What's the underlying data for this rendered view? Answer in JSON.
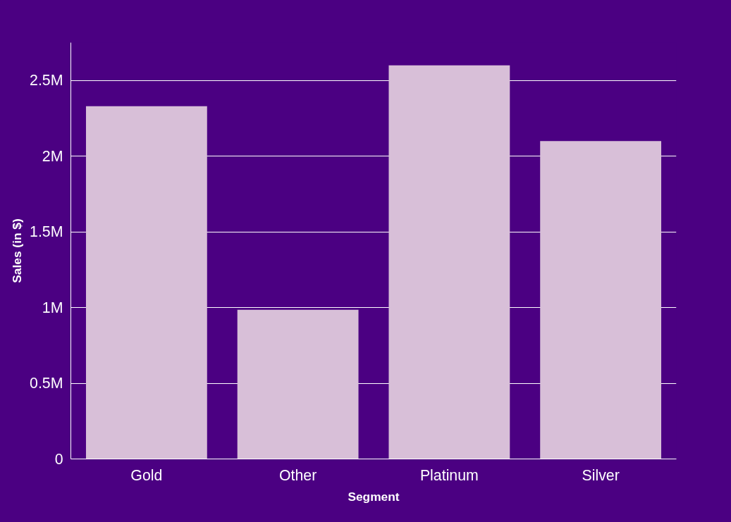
{
  "chart_data": {
    "type": "bar",
    "xlabel": "Segment",
    "ylabel": "Sales (in $)",
    "categories": [
      "Gold",
      "Other",
      "Platinum",
      "Silver"
    ],
    "values": [
      2330000,
      985000,
      2600000,
      2100000
    ],
    "color": "#d8bfd8",
    "ylim": [
      0,
      2750000
    ],
    "yticks": [
      0,
      {
        "value": 500000,
        "label": "0.5M"
      },
      {
        "value": 1000000,
        "label": "1M"
      },
      {
        "value": 1500000,
        "label": "1.5M"
      },
      {
        "value": 2000000,
        "label": "2M"
      },
      {
        "value": 2500000,
        "label": "2.5M"
      }
    ],
    "grid": "y"
  }
}
